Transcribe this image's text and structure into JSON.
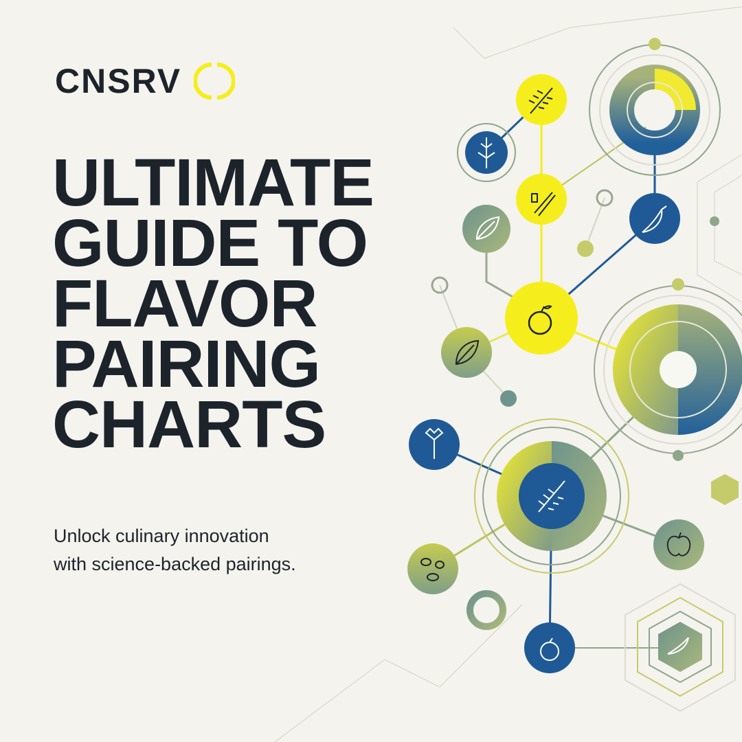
{
  "brand": {
    "name": "CNSRV",
    "accent": "#f5ee1c",
    "mark_icon": "bracket-circle-icon"
  },
  "headline": {
    "lines": [
      "ULTIMATE",
      "GUIDE TO",
      "FLAVOR",
      "PAIRING",
      "CHARTS"
    ]
  },
  "subtitle": {
    "lines": [
      "Unlock culinary innovation",
      "with science-backed pairings."
    ]
  },
  "colors": {
    "yellow": "#f5ee1c",
    "blue": "#1f5a96",
    "sage": "#8fa68a",
    "olive": "#b9c45a",
    "text": "#1c232b",
    "background": "#f4f3ee"
  },
  "nodes": [
    "rosemary-icon",
    "herb-sprig-icon",
    "cinnamon-icon",
    "leaf-icon",
    "chili-icon",
    "orange-icon",
    "leaf-icon",
    "parsley-icon",
    "rosemary-icon",
    "apple-icon",
    "nuts-icon",
    "orange-icon",
    "chili-icon"
  ]
}
